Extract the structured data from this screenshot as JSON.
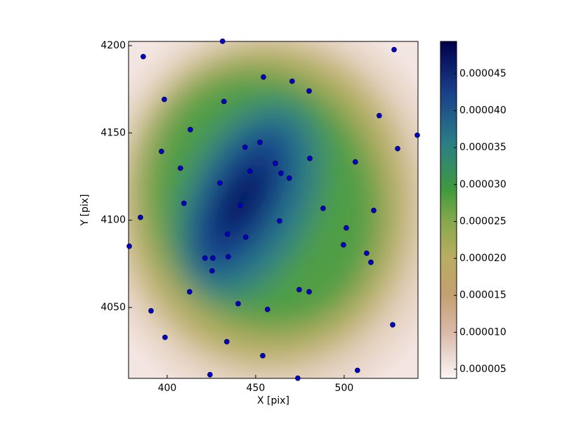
{
  "chart_data": {
    "type": "scatter",
    "x_label": "X [pix]",
    "y_label": "Y [pix]",
    "xlim": [
      378.2,
      541.7
    ],
    "ylim": [
      4009.4,
      4202.4
    ],
    "xticks": [
      400,
      450,
      500
    ],
    "yticks": [
      4050,
      4100,
      4150,
      4200
    ],
    "color": "#0000cc",
    "x": [
      386.5,
      431.3,
      398.4,
      454.4,
      470.6,
      480.2,
      432.1,
      413.1,
      519.8,
      528.2,
      541.3,
      396.8,
      444.0,
      452.4,
      461.1,
      407.5,
      446.8,
      464.3,
      480.6,
      469.0,
      506.3,
      530.2,
      429.8,
      409.5,
      441.3,
      463.5,
      488.1,
      501.2,
      516.7,
      384.9,
      378.6,
      434.1,
      444.4,
      434.5,
      499.6,
      421.4,
      425.8,
      425.4,
      512.7,
      515.1,
      412.7,
      474.6,
      480.2,
      440.1,
      456.7,
      390.9,
      527.4,
      398.8,
      433.7,
      454.0,
      424.2,
      473.8,
      507.5
    ],
    "y": [
      4193.7,
      4202.5,
      4169.2,
      4182.0,
      4179.6,
      4174.0,
      4168.0,
      4151.9,
      4159.9,
      4197.7,
      4148.7,
      4139.4,
      4141.8,
      4144.6,
      4132.6,
      4129.8,
      4128.1,
      4126.9,
      4135.4,
      4124.1,
      4133.4,
      4141.0,
      4121.3,
      4109.7,
      4108.4,
      4099.6,
      4106.8,
      4095.6,
      4105.6,
      4101.6,
      4085.1,
      4092.0,
      4090.3,
      4079.1,
      4085.9,
      4078.3,
      4078.3,
      4071.0,
      4081.1,
      4075.9,
      4059.0,
      4060.2,
      4059.0,
      4052.2,
      4048.9,
      4048.1,
      4040.1,
      4032.9,
      4030.4,
      4022.4,
      4011.5,
      4009.5,
      4014.0
    ],
    "colorbar": {
      "clim": [
        3.76e-06,
        4.937e-05
      ],
      "ticks": [
        {
          "value": 5e-06,
          "label": "0.000005"
        },
        {
          "value": 1e-05,
          "label": "0.000010"
        },
        {
          "value": 1.5e-05,
          "label": "0.000015"
        },
        {
          "value": 2e-05,
          "label": "0.000020"
        },
        {
          "value": 2.5e-05,
          "label": "0.000025"
        },
        {
          "value": 3e-05,
          "label": "0.000030"
        },
        {
          "value": 3.5e-05,
          "label": "0.000035"
        },
        {
          "value": 4e-05,
          "label": "0.000040"
        },
        {
          "value": 4.5e-05,
          "label": "0.000045"
        }
      ]
    }
  }
}
